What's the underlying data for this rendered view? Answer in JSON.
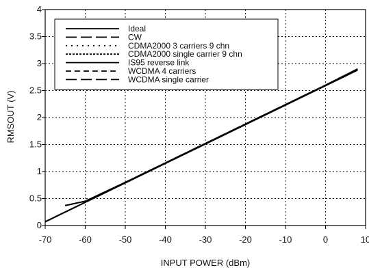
{
  "chart_data": {
    "type": "line",
    "title": "",
    "xlabel": "INPUT POWER (dBm)",
    "ylabel": "RMSOUT (V)",
    "xlim": [
      -70,
      10
    ],
    "ylim": [
      0,
      4
    ],
    "xticks": [
      -70,
      -60,
      -50,
      -40,
      -30,
      -20,
      -10,
      0,
      10
    ],
    "yticks": [
      0,
      0.5,
      1,
      1.5,
      2,
      2.5,
      3,
      3.5,
      4
    ],
    "grid": true,
    "legend_position": "top-left",
    "series": [
      {
        "name": "Ideal",
        "dash": "solid",
        "x": [
          -70,
          8
        ],
        "y": [
          0.07,
          2.88
        ]
      },
      {
        "name": "CW",
        "dash": "longdash",
        "x": [
          -65,
          -60,
          -50,
          -40,
          -30,
          -20,
          -10,
          0,
          8
        ],
        "y": [
          0.37,
          0.45,
          0.8,
          1.16,
          1.52,
          1.88,
          2.24,
          2.6,
          2.9
        ]
      },
      {
        "name": "CDMA2000 3 carriers 9 chn",
        "dash": "dotted",
        "x": [
          -65,
          -60,
          -50,
          -40,
          -30,
          -20,
          -10,
          0,
          8
        ],
        "y": [
          0.37,
          0.45,
          0.8,
          1.16,
          1.52,
          1.88,
          2.24,
          2.6,
          2.9
        ]
      },
      {
        "name": "CDMA2000 single carrier 9 chn",
        "dash": "densedot",
        "x": [
          -65,
          -60,
          -50,
          -40,
          -30,
          -20,
          -10,
          0,
          8
        ],
        "y": [
          0.37,
          0.45,
          0.8,
          1.16,
          1.52,
          1.88,
          2.24,
          2.6,
          2.9
        ]
      },
      {
        "name": "IS95 reverse link",
        "dash": "solid",
        "x": [
          -65,
          -60,
          -50,
          -40,
          -30,
          -20,
          -10,
          0,
          8
        ],
        "y": [
          0.37,
          0.45,
          0.8,
          1.16,
          1.52,
          1.88,
          2.24,
          2.6,
          2.9
        ]
      },
      {
        "name": "WCDMA 4 carriers",
        "dash": "dashed",
        "x": [
          -65,
          -60,
          -50,
          -40,
          -30,
          -20,
          -10,
          0,
          8
        ],
        "y": [
          0.37,
          0.45,
          0.8,
          1.16,
          1.52,
          1.88,
          2.24,
          2.6,
          2.9
        ]
      },
      {
        "name": "WCDMA single carrier",
        "dash": "longdash",
        "x": [
          -65,
          -60,
          -50,
          -40,
          -30,
          -20,
          -10,
          0,
          8
        ],
        "y": [
          0.37,
          0.45,
          0.8,
          1.16,
          1.52,
          1.88,
          2.24,
          2.6,
          2.9
        ]
      }
    ]
  }
}
